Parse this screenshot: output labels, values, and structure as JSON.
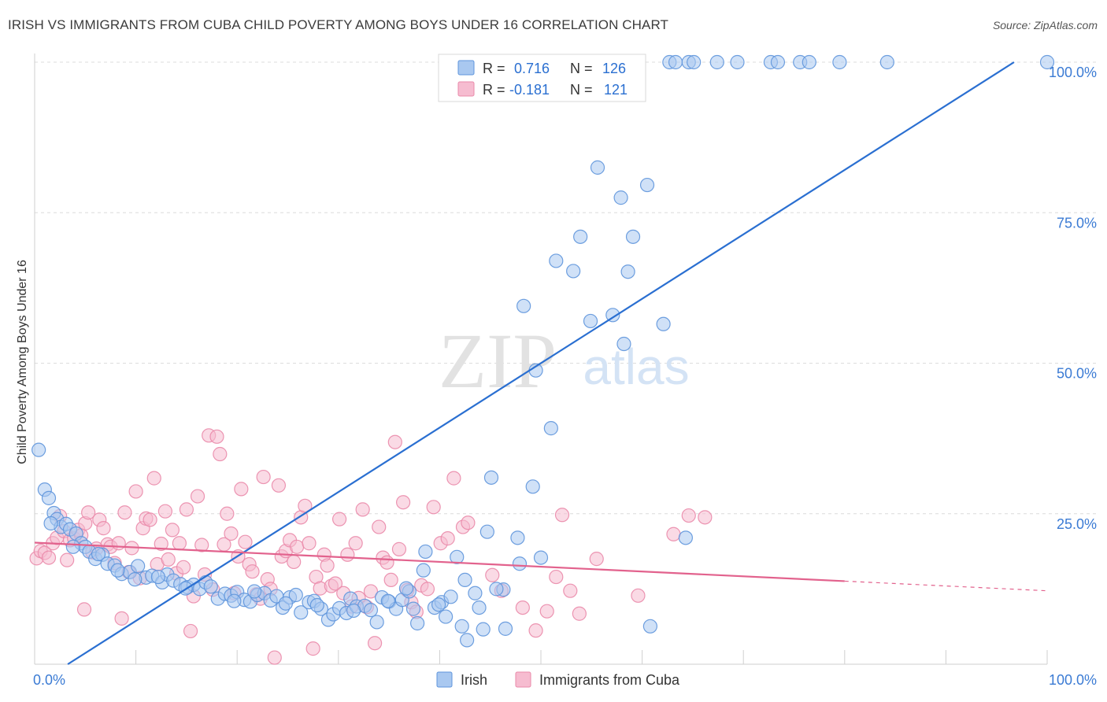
{
  "title": "IRISH VS IMMIGRANTS FROM CUBA CHILD POVERTY AMONG BOYS UNDER 16 CORRELATION CHART",
  "source": "Source: ZipAtlas.com",
  "watermark": {
    "zip": "ZIP",
    "atlas": "atlas"
  },
  "legend_box": {
    "rows": [
      {
        "r_label": "R =",
        "r_value": "0.716",
        "n_label": "N =",
        "n_value": "126"
      },
      {
        "r_label": "R =",
        "r_value": "-0.181",
        "n_label": "N =",
        "n_value": "121"
      }
    ]
  },
  "colors": {
    "irish_fill": "#a9c8f0",
    "irish_stroke": "#5e95dc",
    "irish_line": "#2a6fd1",
    "cuba_fill": "#f6bcd0",
    "cuba_stroke": "#ea8aaa",
    "cuba_line": "#e2628d",
    "tick_label": "#3b7bd4",
    "grid": "#dcdcdc"
  },
  "chart_data": {
    "type": "scatter",
    "title": "IRISH VS IMMIGRANTS FROM CUBA CHILD POVERTY AMONG BOYS UNDER 16 CORRELATION CHART",
    "xlabel": "",
    "ylabel": "Child Poverty Among Boys Under 16",
    "xlim": [
      0,
      100
    ],
    "ylim": [
      0,
      100
    ],
    "x_tick_labels": [
      "0.0%",
      "100.0%"
    ],
    "y_tick_labels": [
      "25.0%",
      "50.0%",
      "75.0%",
      "100.0%"
    ],
    "y_ticks": [
      25,
      50,
      75,
      100
    ],
    "grid": true,
    "legend_position": "bottom-center",
    "series": [
      {
        "name": "Irish",
        "R": 0.716,
        "N": 126,
        "trend": {
          "x0": 0,
          "y0": -3.5,
          "x1": 100,
          "y1": 103.5
        },
        "points": [
          [
            0.4,
            35.6
          ],
          [
            1,
            29
          ],
          [
            1.4,
            27.6
          ],
          [
            1.9,
            25.1
          ],
          [
            2.2,
            24.1
          ],
          [
            2.6,
            22.8
          ],
          [
            3.1,
            23.3
          ],
          [
            3.5,
            22.4
          ],
          [
            4.1,
            21.7
          ],
          [
            4.6,
            20.1
          ],
          [
            5,
            19.5
          ],
          [
            5.4,
            18.7
          ],
          [
            6,
            17.5
          ],
          [
            6.7,
            18.2
          ],
          [
            7.2,
            16.7
          ],
          [
            7.9,
            16.4
          ],
          [
            8.6,
            15
          ],
          [
            9.4,
            15.3
          ],
          [
            10.2,
            16.3
          ],
          [
            11,
            14.4
          ],
          [
            11.6,
            14.7
          ],
          [
            12.6,
            13.6
          ],
          [
            13.1,
            14.9
          ],
          [
            13.7,
            13.9
          ],
          [
            14.4,
            13.3
          ],
          [
            15.1,
            12.8
          ],
          [
            15.7,
            13.2
          ],
          [
            16.3,
            12.5
          ],
          [
            16.9,
            13.6
          ],
          [
            17.4,
            12.9
          ],
          [
            18.1,
            10.9
          ],
          [
            18.8,
            11.7
          ],
          [
            19.4,
            11.4
          ],
          [
            20,
            12
          ],
          [
            20.7,
            10.7
          ],
          [
            21.3,
            10.4
          ],
          [
            22,
            11.5
          ],
          [
            22.7,
            11.8
          ],
          [
            23.3,
            10.6
          ],
          [
            23.9,
            11.3
          ],
          [
            24.5,
            9.4
          ],
          [
            25.2,
            11.1
          ],
          [
            25.8,
            11.5
          ],
          [
            26.3,
            8.6
          ],
          [
            27.1,
            10.3
          ],
          [
            27.6,
            10.5
          ],
          [
            28.3,
            9.2
          ],
          [
            29,
            7.4
          ],
          [
            29.5,
            8.3
          ],
          [
            30.1,
            9.3
          ],
          [
            30.8,
            8.5
          ],
          [
            31.2,
            10.9
          ],
          [
            31.8,
            9.6
          ],
          [
            32.6,
            9.7
          ],
          [
            33.2,
            9
          ],
          [
            33.8,
            7
          ],
          [
            34.3,
            11.1
          ],
          [
            35,
            10.4
          ],
          [
            35.7,
            9.2
          ],
          [
            36.3,
            10.7
          ],
          [
            37,
            12.1
          ],
          [
            37.4,
            9.2
          ],
          [
            37.8,
            6.8
          ],
          [
            38.4,
            15.6
          ],
          [
            38.6,
            18.7
          ],
          [
            39.5,
            9.4
          ],
          [
            40.2,
            10.3
          ],
          [
            40.6,
            7.9
          ],
          [
            41.1,
            11.2
          ],
          [
            41.7,
            17.8
          ],
          [
            42.2,
            6.3
          ],
          [
            42.5,
            14
          ],
          [
            42.7,
            4
          ],
          [
            43.9,
            9.4
          ],
          [
            44.7,
            22
          ],
          [
            44.3,
            5.8
          ],
          [
            45.1,
            31
          ],
          [
            46.3,
            12.4
          ],
          [
            46.5,
            5.9
          ],
          [
            47.7,
            21
          ],
          [
            47.9,
            16.7
          ],
          [
            49.2,
            29.5
          ],
          [
            50,
            17.7
          ],
          [
            51,
            39.2
          ],
          [
            51.5,
            67
          ],
          [
            53.2,
            65.3
          ],
          [
            53.9,
            71
          ],
          [
            54.9,
            57
          ],
          [
            55.6,
            82.5
          ],
          [
            57.1,
            58
          ],
          [
            57.9,
            77.5
          ],
          [
            58.2,
            53.2
          ],
          [
            58.6,
            65.2
          ],
          [
            59.1,
            71
          ],
          [
            60.5,
            79.6
          ],
          [
            60.8,
            6.3
          ],
          [
            62.1,
            56.5
          ],
          [
            64.3,
            21
          ],
          [
            48.3,
            59.5
          ],
          [
            49.5,
            48.8
          ],
          [
            62.7,
            100
          ],
          [
            63.3,
            100
          ],
          [
            64.6,
            100
          ],
          [
            65.1,
            100
          ],
          [
            67.4,
            100
          ],
          [
            69.4,
            100
          ],
          [
            72.7,
            100
          ],
          [
            73.4,
            100
          ],
          [
            75.6,
            100
          ],
          [
            76.5,
            100
          ],
          [
            79.5,
            100
          ],
          [
            84.2,
            100
          ],
          [
            100,
            100
          ],
          [
            1.6,
            23.4
          ],
          [
            3.8,
            19.5
          ],
          [
            6.3,
            18.3
          ],
          [
            8.2,
            15.6
          ],
          [
            9.9,
            14.1
          ],
          [
            12.2,
            14.5
          ],
          [
            14.9,
            12.6
          ],
          [
            19.7,
            10.5
          ],
          [
            21.7,
            12.1
          ],
          [
            24.8,
            10.1
          ],
          [
            27.9,
            9.8
          ],
          [
            31.5,
            8.9
          ],
          [
            34.9,
            10.5
          ],
          [
            36.7,
            12.6
          ],
          [
            39.9,
            9.9
          ],
          [
            43.5,
            11.8
          ],
          [
            45.6,
            12.5
          ]
        ]
      },
      {
        "name": "Immigrants from Cuba",
        "R": -0.181,
        "N": 121,
        "trend": {
          "x0": 0,
          "y0": 20.2,
          "x1": 100,
          "y1": 12.2,
          "solid_until_x": 80
        },
        "points": [
          [
            0.2,
            17.6
          ],
          [
            0.6,
            18.8
          ],
          [
            1,
            18.5
          ],
          [
            1.4,
            17.7
          ],
          [
            1.8,
            20.1
          ],
          [
            2.2,
            21
          ],
          [
            2.5,
            24.6
          ],
          [
            2.9,
            22.1
          ],
          [
            3.2,
            17.3
          ],
          [
            3.5,
            20.6
          ],
          [
            3.9,
            20.9
          ],
          [
            4.3,
            22.3
          ],
          [
            4.6,
            21.4
          ],
          [
            5,
            23.4
          ],
          [
            5.3,
            25.2
          ],
          [
            5.7,
            18.6
          ],
          [
            6.1,
            19.2
          ],
          [
            6.4,
            24
          ],
          [
            6.8,
            22.6
          ],
          [
            7.2,
            19.9
          ],
          [
            7.5,
            19.5
          ],
          [
            7.9,
            16.8
          ],
          [
            8.3,
            20.1
          ],
          [
            8.6,
            7.6
          ],
          [
            8.9,
            25.2
          ],
          [
            9.3,
            15.3
          ],
          [
            9.6,
            19.3
          ],
          [
            10,
            28.7
          ],
          [
            10.4,
            14.3
          ],
          [
            10.7,
            22.6
          ],
          [
            11,
            24.2
          ],
          [
            11.4,
            24
          ],
          [
            11.8,
            30.9
          ],
          [
            12.1,
            16.6
          ],
          [
            12.5,
            20
          ],
          [
            12.9,
            25.4
          ],
          [
            13.2,
            17.4
          ],
          [
            13.6,
            22.3
          ],
          [
            14,
            15.1
          ],
          [
            14.3,
            20.1
          ],
          [
            14.7,
            16.1
          ],
          [
            15,
            25.7
          ],
          [
            15.4,
            5.5
          ],
          [
            15.7,
            11.3
          ],
          [
            16.1,
            27.9
          ],
          [
            16.5,
            19.8
          ],
          [
            16.8,
            14.9
          ],
          [
            17.2,
            38
          ],
          [
            17.6,
            12.4
          ],
          [
            18,
            37.8
          ],
          [
            18.3,
            34.9
          ],
          [
            18.7,
            19.9
          ],
          [
            19,
            25
          ],
          [
            19.4,
            21.7
          ],
          [
            19.7,
            11.8
          ],
          [
            20.1,
            17.9
          ],
          [
            20.4,
            29.1
          ],
          [
            20.8,
            20.3
          ],
          [
            21.2,
            16.6
          ],
          [
            21.5,
            15.4
          ],
          [
            21.9,
            11.6
          ],
          [
            22.3,
            10.9
          ],
          [
            22.6,
            31.1
          ],
          [
            23,
            14.1
          ],
          [
            23.3,
            12.5
          ],
          [
            23.7,
            1.1
          ],
          [
            24.1,
            29.7
          ],
          [
            24.4,
            17.9
          ],
          [
            24.8,
            18.8
          ],
          [
            25.2,
            20.6
          ],
          [
            25.6,
            17
          ],
          [
            25.9,
            19.5
          ],
          [
            26.3,
            24.4
          ],
          [
            26.7,
            26.3
          ],
          [
            27.1,
            20.1
          ],
          [
            27.5,
            2.6
          ],
          [
            27.8,
            14.5
          ],
          [
            28.2,
            12.6
          ],
          [
            28.6,
            18.2
          ],
          [
            28.9,
            16.4
          ],
          [
            29.3,
            13
          ],
          [
            29.7,
            13.4
          ],
          [
            30.1,
            24.1
          ],
          [
            30.5,
            11.8
          ],
          [
            30.9,
            18.2
          ],
          [
            31.3,
            9.6
          ],
          [
            31.7,
            20.1
          ],
          [
            32,
            11
          ],
          [
            32.4,
            25.7
          ],
          [
            32.8,
            9.5
          ],
          [
            33.2,
            12.1
          ],
          [
            33.6,
            3.5
          ],
          [
            34,
            22.8
          ],
          [
            34.4,
            17.7
          ],
          [
            34.8,
            16.9
          ],
          [
            35.2,
            14
          ],
          [
            35.6,
            36.9
          ],
          [
            36,
            19.1
          ],
          [
            36.4,
            26.9
          ],
          [
            36.8,
            12.3
          ],
          [
            37.2,
            10.3
          ],
          [
            37.7,
            8.7
          ],
          [
            38.2,
            13.1
          ],
          [
            38.8,
            12.5
          ],
          [
            39.4,
            26.1
          ],
          [
            40.1,
            20.1
          ],
          [
            40.8,
            20.9
          ],
          [
            41.4,
            30.9
          ],
          [
            42.3,
            22.8
          ],
          [
            42.8,
            23.5
          ],
          [
            45.2,
            14.8
          ],
          [
            46.1,
            12.2
          ],
          [
            48.2,
            9.4
          ],
          [
            49.5,
            5.6
          ],
          [
            50.6,
            8.8
          ],
          [
            51.5,
            14.5
          ],
          [
            52.1,
            24.8
          ],
          [
            52.9,
            12.2
          ],
          [
            53.8,
            8.4
          ],
          [
            55.5,
            17.5
          ],
          [
            59.6,
            11.4
          ],
          [
            63.1,
            21.6
          ],
          [
            64.6,
            24.7
          ],
          [
            66.2,
            24.4
          ],
          [
            4.9,
            9.1
          ]
        ]
      }
    ]
  }
}
